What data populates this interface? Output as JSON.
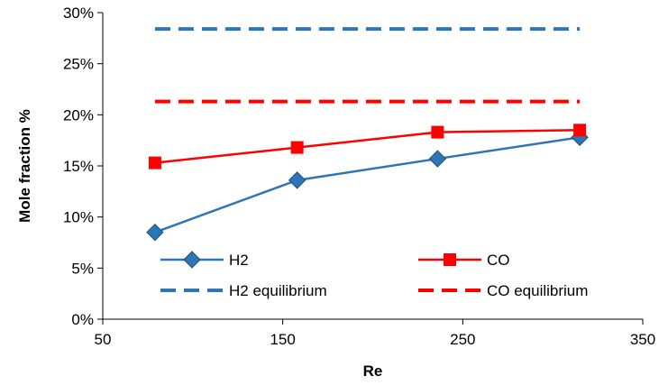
{
  "chart_data": {
    "type": "line",
    "title": "",
    "xlabel": "Re",
    "ylabel": "Mole fraction %",
    "xlim": [
      50,
      350
    ],
    "ylim": [
      0,
      30
    ],
    "x_ticks": [
      50,
      150,
      250,
      350
    ],
    "y_ticks": [
      0,
      5,
      10,
      15,
      20,
      25,
      30
    ],
    "y_tick_labels": [
      "0%",
      "5%",
      "10%",
      "15%",
      "20%",
      "25%",
      "30%"
    ],
    "x_tick_labels": [
      "50",
      "150",
      "250",
      "350"
    ],
    "grid": false,
    "legend_position": "bottom-inside",
    "series": [
      {
        "name": "H2",
        "style": "solid",
        "marker": "diamond",
        "color": "#2E75B6",
        "x": [
          79,
          158,
          236,
          315
        ],
        "y": [
          8.5,
          13.6,
          15.7,
          17.8
        ]
      },
      {
        "name": "CO",
        "style": "solid",
        "marker": "square",
        "color": "#FF0000",
        "x": [
          79,
          158,
          236,
          315
        ],
        "y": [
          15.3,
          16.8,
          18.3,
          18.5
        ]
      },
      {
        "name": "H2 equilibrium",
        "style": "dashed",
        "marker": "none",
        "color": "#2E75B6",
        "x": [
          79,
          315
        ],
        "y": [
          28.4,
          28.4
        ]
      },
      {
        "name": "CO equilibrium",
        "style": "dashed",
        "marker": "none",
        "color": "#FF0000",
        "x": [
          79,
          315
        ],
        "y": [
          21.3,
          21.3
        ]
      }
    ]
  }
}
